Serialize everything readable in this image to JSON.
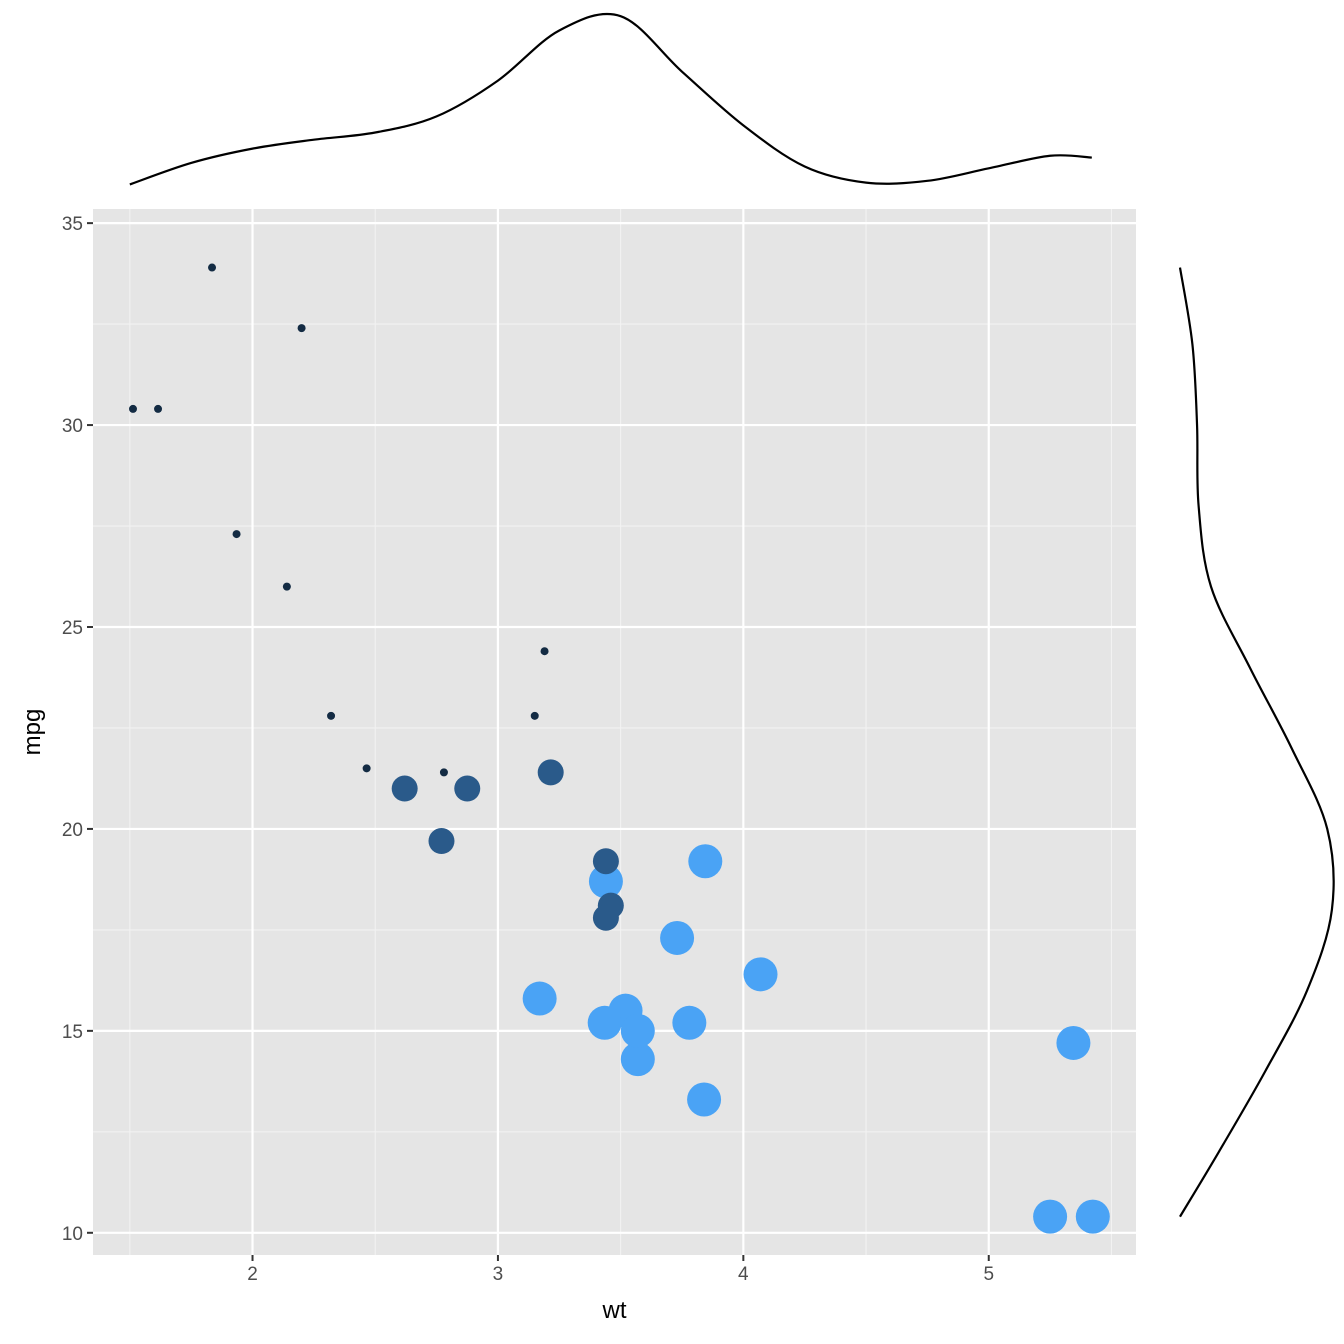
{
  "chart_data": {
    "type": "scatter",
    "title": "",
    "xlabel": "wt",
    "ylabel": "mpg",
    "xlim": [
      1.35,
      5.6
    ],
    "ylim": [
      9.45,
      35.35
    ],
    "x_ticks": [
      2,
      3,
      4,
      5
    ],
    "y_ticks": [
      10,
      15,
      20,
      25,
      30,
      35
    ],
    "x_tick_labels": [
      "2",
      "3",
      "4",
      "5"
    ],
    "y_tick_labels": [
      "10",
      "15",
      "20",
      "25",
      "30",
      "35"
    ],
    "grid": true,
    "legend": "none",
    "panel_background": "#e5e5e5",
    "colors": {
      "4": "#132b43",
      "6": "#2a5a8a",
      "8": "#4aa3f5"
    },
    "point_sizes": {
      "4": 4,
      "6": 13,
      "8": 17
    },
    "group_field": "cyl",
    "points": [
      {
        "x": 2.62,
        "y": 21.0,
        "cyl": 6
      },
      {
        "x": 2.875,
        "y": 21.0,
        "cyl": 6
      },
      {
        "x": 2.32,
        "y": 22.8,
        "cyl": 4
      },
      {
        "x": 3.215,
        "y": 21.4,
        "cyl": 6
      },
      {
        "x": 3.44,
        "y": 18.7,
        "cyl": 8
      },
      {
        "x": 3.46,
        "y": 18.1,
        "cyl": 6
      },
      {
        "x": 3.57,
        "y": 14.3,
        "cyl": 8
      },
      {
        "x": 3.19,
        "y": 24.4,
        "cyl": 4
      },
      {
        "x": 3.15,
        "y": 22.8,
        "cyl": 4
      },
      {
        "x": 3.44,
        "y": 19.2,
        "cyl": 6
      },
      {
        "x": 3.44,
        "y": 17.8,
        "cyl": 6
      },
      {
        "x": 4.07,
        "y": 16.4,
        "cyl": 8
      },
      {
        "x": 3.73,
        "y": 17.3,
        "cyl": 8
      },
      {
        "x": 3.78,
        "y": 15.2,
        "cyl": 8
      },
      {
        "x": 5.25,
        "y": 10.4,
        "cyl": 8
      },
      {
        "x": 5.424,
        "y": 10.4,
        "cyl": 8
      },
      {
        "x": 5.345,
        "y": 14.7,
        "cyl": 8
      },
      {
        "x": 2.2,
        "y": 32.4,
        "cyl": 4
      },
      {
        "x": 1.615,
        "y": 30.4,
        "cyl": 4
      },
      {
        "x": 1.835,
        "y": 33.9,
        "cyl": 4
      },
      {
        "x": 2.465,
        "y": 21.5,
        "cyl": 4
      },
      {
        "x": 3.52,
        "y": 15.5,
        "cyl": 8
      },
      {
        "x": 3.435,
        "y": 15.2,
        "cyl": 8
      },
      {
        "x": 3.84,
        "y": 13.3,
        "cyl": 8
      },
      {
        "x": 3.845,
        "y": 19.2,
        "cyl": 8
      },
      {
        "x": 1.935,
        "y": 27.3,
        "cyl": 4
      },
      {
        "x": 2.14,
        "y": 26.0,
        "cyl": 4
      },
      {
        "x": 1.513,
        "y": 30.4,
        "cyl": 4
      },
      {
        "x": 3.17,
        "y": 15.8,
        "cyl": 8
      },
      {
        "x": 2.77,
        "y": 19.7,
        "cyl": 6
      },
      {
        "x": 3.57,
        "y": 15.0,
        "cyl": 8
      },
      {
        "x": 2.78,
        "y": 21.4,
        "cyl": 4
      }
    ],
    "marginal_x_density": {
      "x": [
        1.5,
        1.75,
        2.0,
        2.25,
        2.5,
        2.75,
        3.0,
        3.25,
        3.5,
        3.75,
        4.0,
        4.25,
        4.5,
        4.75,
        5.0,
        5.25,
        5.42
      ],
      "density": [
        0.02,
        0.14,
        0.22,
        0.27,
        0.31,
        0.4,
        0.6,
        0.88,
        0.96,
        0.65,
        0.35,
        0.12,
        0.03,
        0.04,
        0.11,
        0.18,
        0.17
      ]
    },
    "marginal_y_density": {
      "y": [
        10.4,
        12,
        14,
        16,
        18,
        20,
        22,
        24,
        26,
        28,
        30,
        32,
        33.9
      ],
      "density": [
        0.0,
        0.25,
        0.55,
        0.82,
        0.98,
        0.95,
        0.72,
        0.45,
        0.2,
        0.12,
        0.11,
        0.08,
        0.0
      ]
    }
  }
}
